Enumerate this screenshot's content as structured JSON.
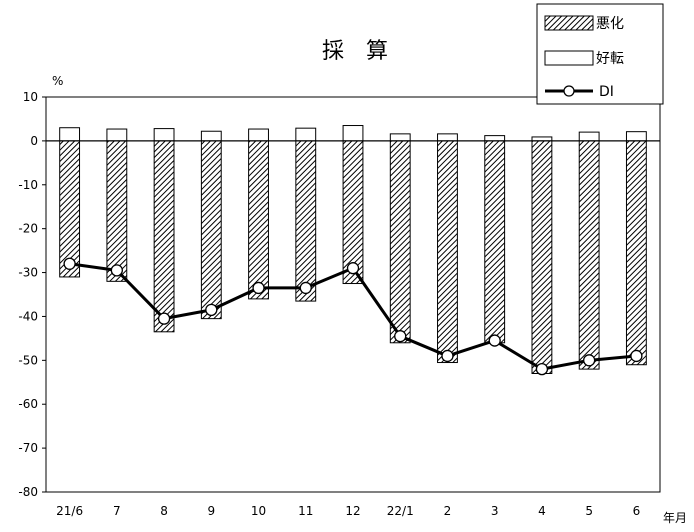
{
  "chart_data": {
    "type": "bar",
    "title": "採　算",
    "ylabel": "%",
    "xlabel": "年月",
    "ylim": [
      -80,
      10
    ],
    "yticks": [
      10,
      0,
      -10,
      -20,
      -30,
      -40,
      -50,
      -60,
      -70,
      -80
    ],
    "categories": [
      "21/6",
      "7",
      "8",
      "9",
      "10",
      "11",
      "12",
      "22/1",
      "2",
      "3",
      "4",
      "5",
      "6"
    ],
    "series": [
      {
        "name": "悪化",
        "kind": "bar-hatched",
        "values": [
          -31,
          -32,
          -43.5,
          -40.5,
          -36,
          -36.5,
          -32.5,
          -46,
          -50.5,
          -46,
          -53,
          -52,
          -51
        ]
      },
      {
        "name": "好転",
        "kind": "bar-white",
        "values": [
          3,
          2.7,
          2.8,
          2.2,
          2.7,
          2.9,
          3.5,
          1.6,
          1.6,
          1.2,
          0.9,
          2,
          2.1
        ]
      },
      {
        "name": "DI",
        "kind": "line-marker",
        "values": [
          -28,
          -29.5,
          -40.5,
          -38.5,
          -33.5,
          -33.5,
          -29,
          -44.5,
          -49,
          -45.5,
          -52,
          -50,
          -49
        ]
      }
    ],
    "legend": "top-right",
    "grid": false
  }
}
